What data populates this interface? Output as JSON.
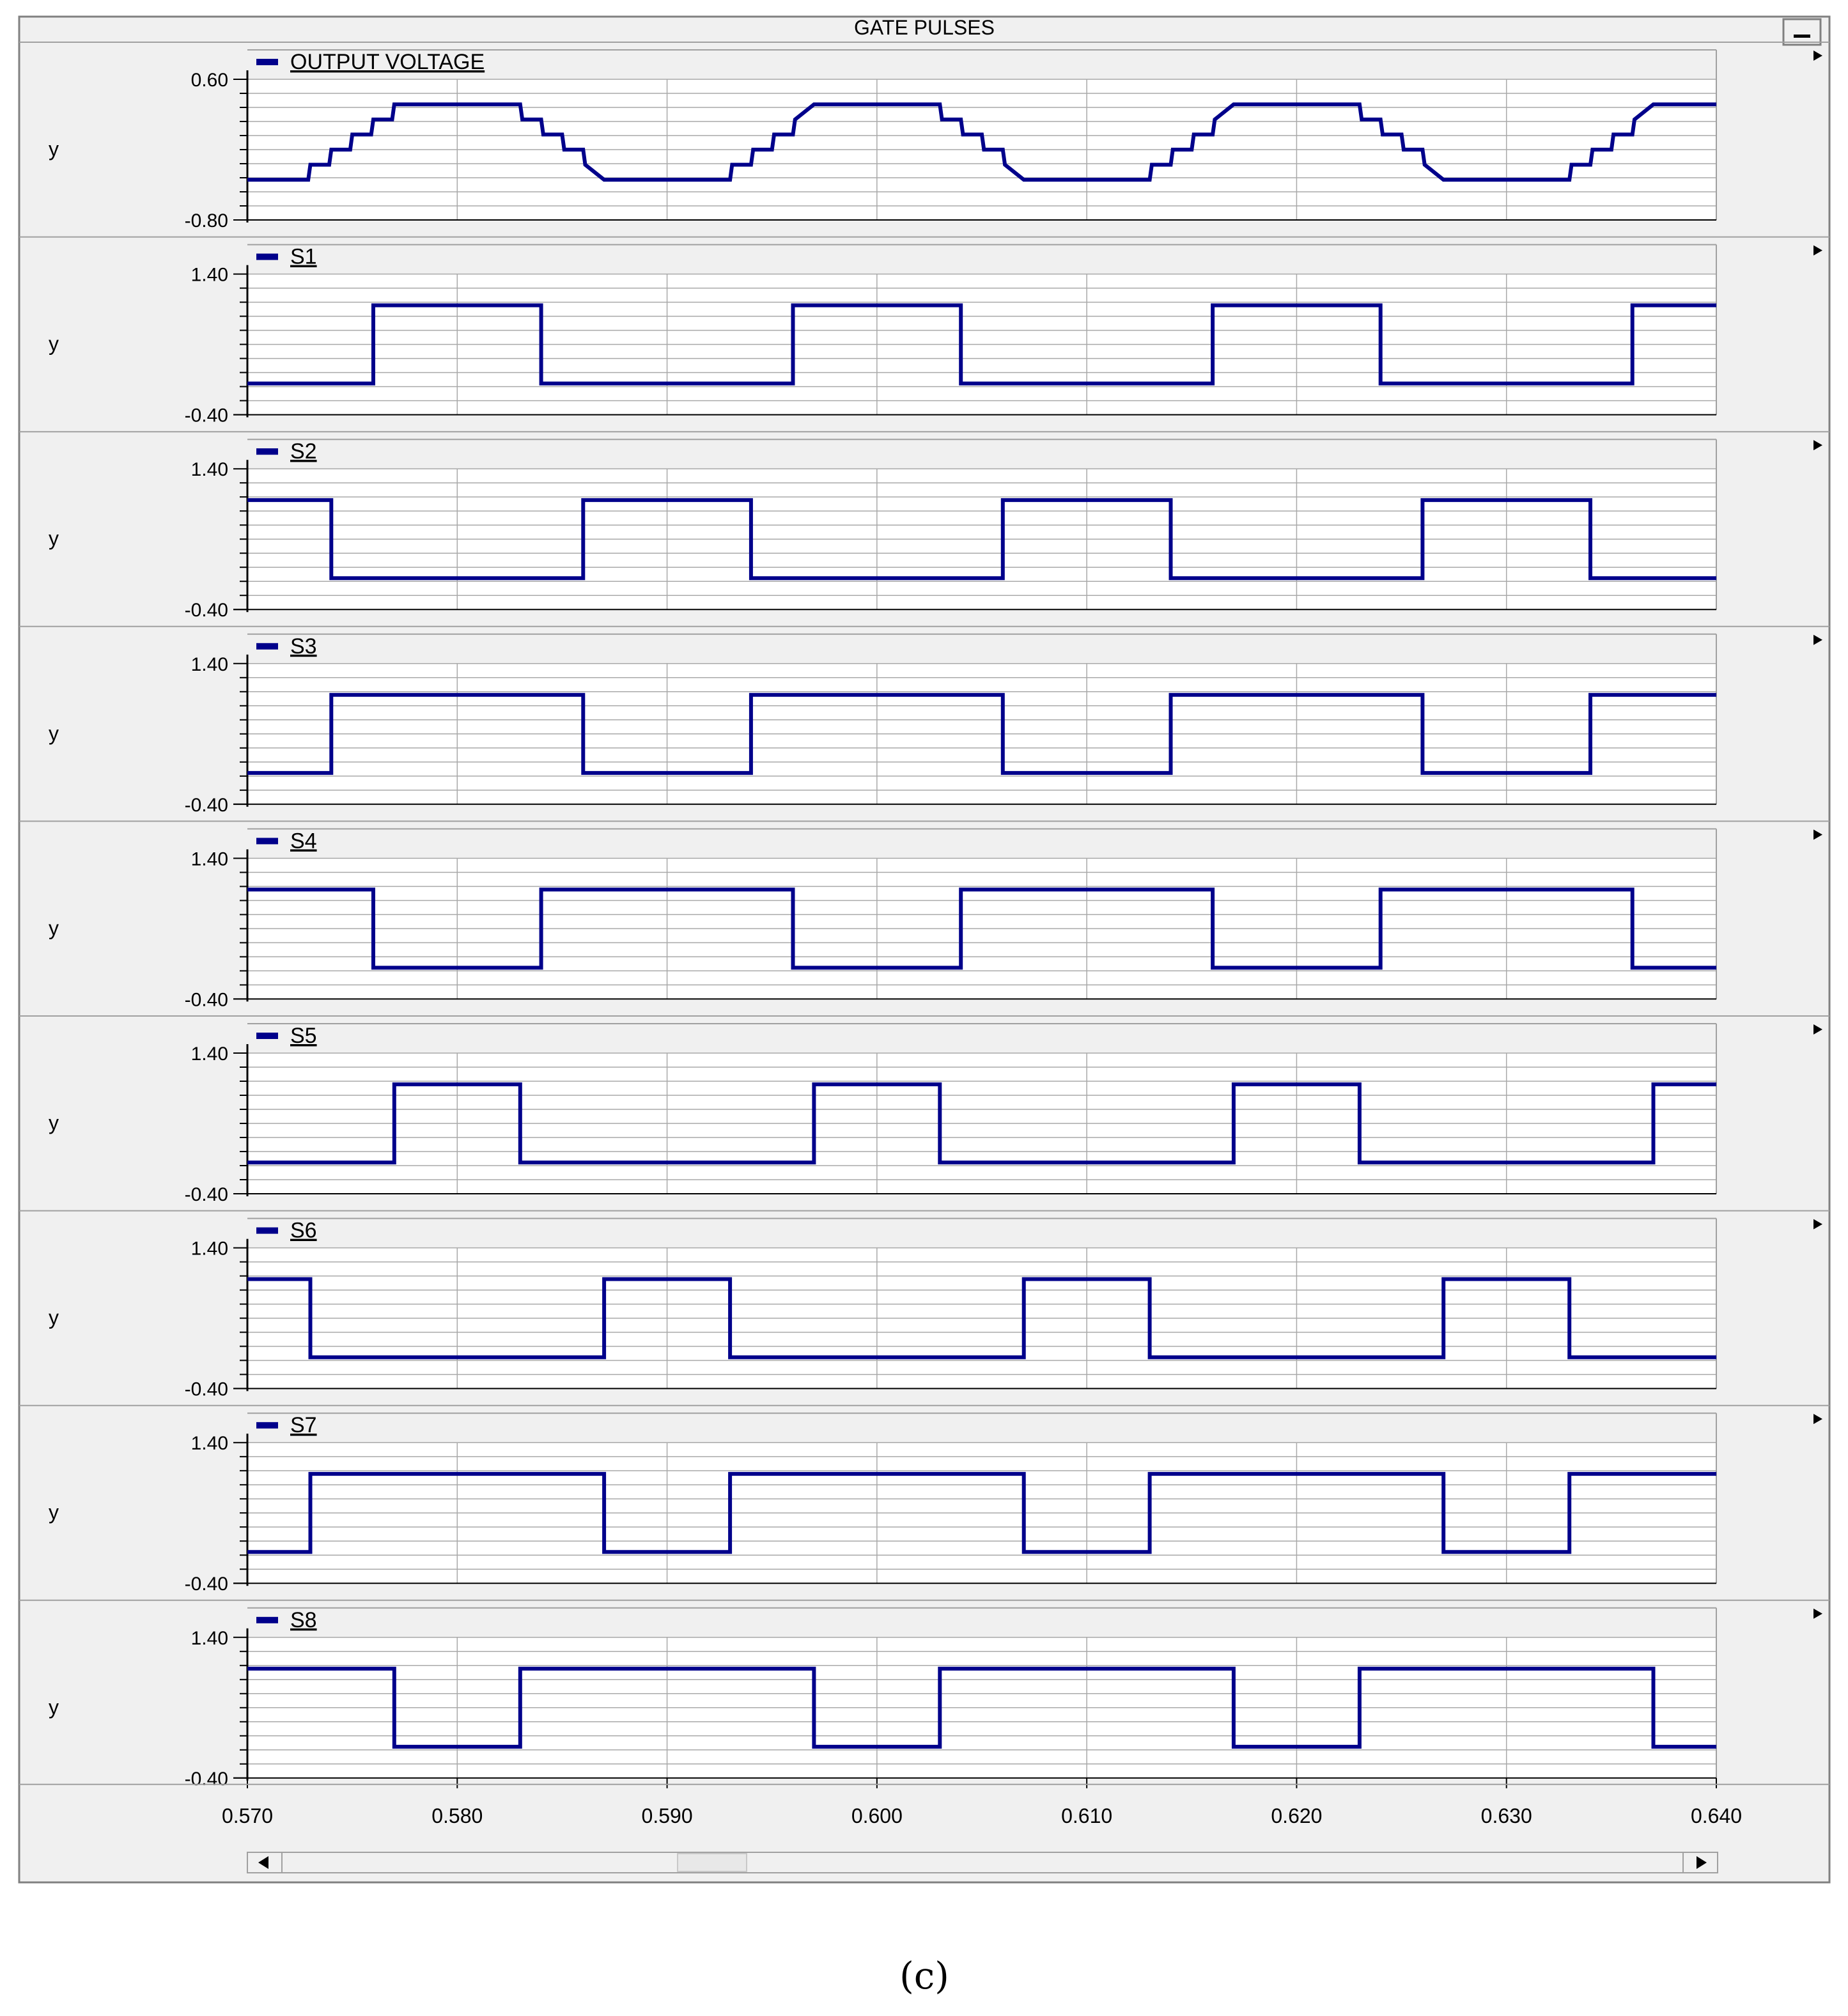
{
  "window": {
    "title": "GATE PULSES"
  },
  "icons": {
    "minimize": "minimize-icon",
    "panel_menu": "triangle-right-icon",
    "legend_marker": "legend-dash-icon",
    "scroll_left": "arrow-left-icon",
    "scroll_right": "arrow-right-icon"
  },
  "colors": {
    "trace": "#00008b",
    "grid": "#a9a9a9",
    "frame": "#808080"
  },
  "caption": "(c)",
  "chart_data": {
    "type": "line",
    "x_ticks": [
      "0.570",
      "0.580",
      "0.590",
      "0.600",
      "0.610",
      "0.620",
      "0.630",
      "0.640"
    ],
    "xlim": [
      0.57,
      0.64
    ],
    "grid": true,
    "panels": [
      {
        "name": "OUTPUT VOLTAGE",
        "ylabel": "y",
        "ylim": [
          -0.8,
          0.6
        ],
        "yticks": [
          "0.60",
          "-0.80"
        ],
        "x": [
          0.57,
          0.5729,
          0.573,
          0.5739,
          0.574,
          0.5749,
          0.575,
          0.5759,
          0.576,
          0.5769,
          0.577,
          0.583,
          0.5831,
          0.584,
          0.5841,
          0.585,
          0.5851,
          0.586,
          0.5861,
          0.587,
          0.593,
          0.5931,
          0.594,
          0.5941,
          0.595,
          0.5951,
          0.596,
          0.5961,
          0.597,
          0.603,
          0.6031,
          0.604,
          0.6041,
          0.605,
          0.6051,
          0.606,
          0.6061,
          0.607,
          0.613,
          0.6131,
          0.614,
          0.6141,
          0.615,
          0.6151,
          0.616,
          0.6161,
          0.617,
          0.623,
          0.6231,
          0.624,
          0.6241,
          0.625,
          0.6251,
          0.626,
          0.6261,
          0.627,
          0.633,
          0.6331,
          0.634,
          0.6341,
          0.635,
          0.6351,
          0.636,
          0.6361,
          0.637,
          0.64
        ],
        "y": [
          -0.4,
          -0.4,
          -0.25,
          -0.25,
          -0.1,
          -0.1,
          0.05,
          0.05,
          0.2,
          0.2,
          0.35,
          0.35,
          0.2,
          0.2,
          0.05,
          0.05,
          -0.1,
          -0.1,
          -0.25,
          -0.4,
          -0.4,
          -0.25,
          -0.25,
          -0.1,
          -0.1,
          0.05,
          0.05,
          0.2,
          0.35,
          0.35,
          0.2,
          0.2,
          0.05,
          0.05,
          -0.1,
          -0.1,
          -0.25,
          -0.4,
          -0.4,
          -0.25,
          -0.25,
          -0.1,
          -0.1,
          0.05,
          0.05,
          0.2,
          0.35,
          0.35,
          0.2,
          0.2,
          0.05,
          0.05,
          -0.1,
          -0.1,
          -0.25,
          -0.4,
          -0.4,
          -0.25,
          -0.25,
          -0.1,
          -0.1,
          0.05,
          0.05,
          0.2,
          0.35,
          0.35
        ]
      },
      {
        "name": "S1",
        "ylabel": "y",
        "ylim": [
          -0.4,
          1.4
        ],
        "yticks": [
          "1.40",
          "-0.40"
        ],
        "x": [
          0.57,
          0.576,
          0.576,
          0.584,
          0.584,
          0.596,
          0.596,
          0.604,
          0.604,
          0.616,
          0.616,
          0.624,
          0.624,
          0.636,
          0.636,
          0.64
        ],
        "y": [
          0,
          0,
          1,
          1,
          0,
          0,
          1,
          1,
          0,
          0,
          1,
          1,
          0,
          0,
          1,
          1
        ]
      },
      {
        "name": "S2",
        "ylabel": "y",
        "ylim": [
          -0.4,
          1.4
        ],
        "yticks": [
          "1.40",
          "-0.40"
        ],
        "x": [
          0.57,
          0.574,
          0.574,
          0.586,
          0.586,
          0.594,
          0.594,
          0.606,
          0.606,
          0.614,
          0.614,
          0.626,
          0.626,
          0.634,
          0.634,
          0.64
        ],
        "y": [
          1,
          1,
          0,
          0,
          1,
          1,
          0,
          0,
          1,
          1,
          0,
          0,
          1,
          1,
          0,
          0
        ]
      },
      {
        "name": "S3",
        "ylabel": "y",
        "ylim": [
          -0.4,
          1.4
        ],
        "yticks": [
          "1.40",
          "-0.40"
        ],
        "x": [
          0.57,
          0.574,
          0.574,
          0.586,
          0.586,
          0.594,
          0.594,
          0.606,
          0.606,
          0.614,
          0.614,
          0.626,
          0.626,
          0.634,
          0.634,
          0.64
        ],
        "y": [
          0,
          0,
          1,
          1,
          0,
          0,
          1,
          1,
          0,
          0,
          1,
          1,
          0,
          0,
          1,
          1
        ]
      },
      {
        "name": "S4",
        "ylabel": "y",
        "ylim": [
          -0.4,
          1.4
        ],
        "yticks": [
          "1.40",
          "-0.40"
        ],
        "x": [
          0.57,
          0.576,
          0.576,
          0.584,
          0.584,
          0.596,
          0.596,
          0.604,
          0.604,
          0.616,
          0.616,
          0.624,
          0.624,
          0.636,
          0.636,
          0.64
        ],
        "y": [
          1,
          1,
          0,
          0,
          1,
          1,
          0,
          0,
          1,
          1,
          0,
          0,
          1,
          1,
          0,
          0
        ]
      },
      {
        "name": "S5",
        "ylabel": "y",
        "ylim": [
          -0.4,
          1.4
        ],
        "yticks": [
          "1.40",
          "-0.40"
        ],
        "x": [
          0.57,
          0.577,
          0.577,
          0.583,
          0.583,
          0.597,
          0.597,
          0.603,
          0.603,
          0.617,
          0.617,
          0.623,
          0.623,
          0.637,
          0.637,
          0.64
        ],
        "y": [
          0,
          0,
          1,
          1,
          0,
          0,
          1,
          1,
          0,
          0,
          1,
          1,
          0,
          0,
          1,
          1
        ]
      },
      {
        "name": "S6",
        "ylabel": "y",
        "ylim": [
          -0.4,
          1.4
        ],
        "yticks": [
          "1.40",
          "-0.40"
        ],
        "x": [
          0.57,
          0.573,
          0.573,
          0.587,
          0.587,
          0.593,
          0.593,
          0.607,
          0.607,
          0.613,
          0.613,
          0.627,
          0.627,
          0.633,
          0.633,
          0.64
        ],
        "y": [
          1,
          1,
          0,
          0,
          1,
          1,
          0,
          0,
          1,
          1,
          0,
          0,
          1,
          1,
          0,
          0
        ]
      },
      {
        "name": "S7",
        "ylabel": "y",
        "ylim": [
          -0.4,
          1.4
        ],
        "yticks": [
          "1.40",
          "-0.40"
        ],
        "x": [
          0.57,
          0.573,
          0.573,
          0.587,
          0.587,
          0.593,
          0.593,
          0.607,
          0.607,
          0.613,
          0.613,
          0.627,
          0.627,
          0.633,
          0.633,
          0.64
        ],
        "y": [
          0,
          0,
          1,
          1,
          0,
          0,
          1,
          1,
          0,
          0,
          1,
          1,
          0,
          0,
          1,
          1
        ]
      },
      {
        "name": "S8",
        "ylabel": "y",
        "ylim": [
          -0.4,
          1.4
        ],
        "yticks": [
          "1.40",
          "-0.40"
        ],
        "x": [
          0.57,
          0.577,
          0.577,
          0.583,
          0.583,
          0.597,
          0.597,
          0.603,
          0.603,
          0.617,
          0.617,
          0.623,
          0.623,
          0.637,
          0.637,
          0.64
        ],
        "y": [
          1,
          1,
          0,
          0,
          1,
          1,
          0,
          0,
          1,
          1,
          0,
          0,
          1,
          1,
          0,
          0
        ]
      }
    ]
  }
}
